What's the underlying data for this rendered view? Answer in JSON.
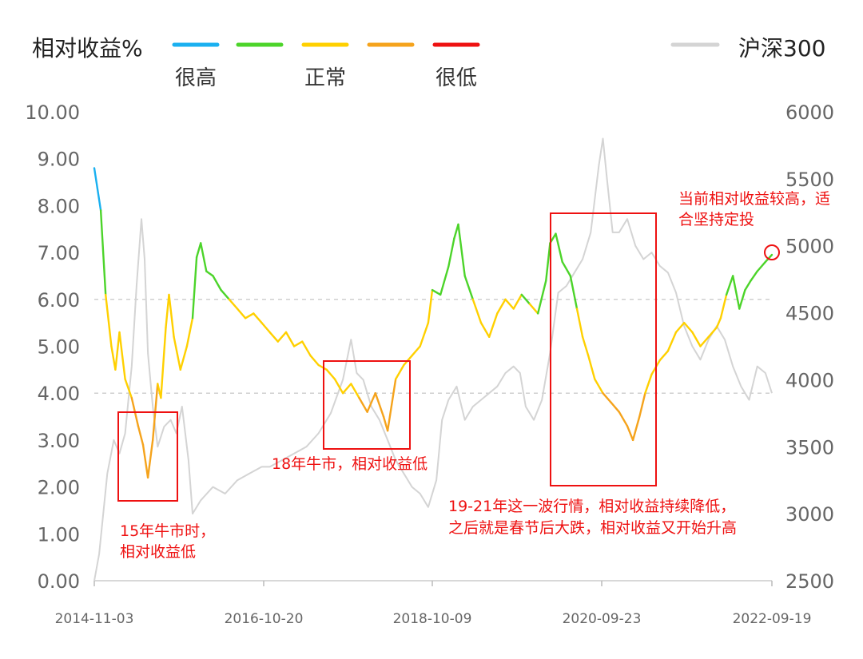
{
  "legend": {
    "title": "相对收益%",
    "items": [
      {
        "label": "很高",
        "color": "#1ab0f0"
      },
      {
        "label": "",
        "color": "#4cd42a"
      },
      {
        "label": "正常",
        "color": "#ffd000"
      },
      {
        "label": "",
        "color": "#f5a31c"
      },
      {
        "label": "很低",
        "color": "#ee1111"
      }
    ],
    "secondary": {
      "label": "沪深300",
      "color": "#d4d4d4"
    }
  },
  "chart_data": {
    "type": "line",
    "x_ticks": [
      "2014-11-03",
      "2016-10-20",
      "2018-10-09",
      "2020-09-23",
      "2022-09-19"
    ],
    "y_left": {
      "ylim": [
        0,
        10
      ],
      "ticks": [
        "0.00",
        "1.00",
        "2.00",
        "3.00",
        "4.00",
        "5.00",
        "6.00",
        "7.00",
        "8.00",
        "9.00",
        "10.00"
      ]
    },
    "y_right": {
      "ylim": [
        2500,
        6000
      ],
      "ticks": [
        "2500",
        "3000",
        "3500",
        "4000",
        "4500",
        "5000",
        "5500",
        "6000"
      ]
    },
    "reference_lines": [
      4.0,
      6.0
    ],
    "series": [
      {
        "name": "相对收益%",
        "axis": "left",
        "values": [
          [
            2014.84,
            8.8
          ],
          [
            2014.92,
            7.9
          ],
          [
            2014.98,
            6.1
          ],
          [
            2015.05,
            5.0
          ],
          [
            2015.1,
            4.5
          ],
          [
            2015.15,
            5.3
          ],
          [
            2015.22,
            4.3
          ],
          [
            2015.3,
            3.9
          ],
          [
            2015.38,
            3.3
          ],
          [
            2015.44,
            2.9
          ],
          [
            2015.5,
            2.2
          ],
          [
            2015.56,
            3.0
          ],
          [
            2015.62,
            4.2
          ],
          [
            2015.66,
            3.9
          ],
          [
            2015.72,
            5.4
          ],
          [
            2015.76,
            6.1
          ],
          [
            2015.82,
            5.2
          ],
          [
            2015.9,
            4.5
          ],
          [
            2015.98,
            5.0
          ],
          [
            2016.05,
            5.6
          ],
          [
            2016.1,
            6.9
          ],
          [
            2016.15,
            7.2
          ],
          [
            2016.22,
            6.6
          ],
          [
            2016.3,
            6.5
          ],
          [
            2016.4,
            6.2
          ],
          [
            2016.5,
            6.0
          ],
          [
            2016.6,
            5.8
          ],
          [
            2016.7,
            5.6
          ],
          [
            2016.8,
            5.7
          ],
          [
            2016.9,
            5.5
          ],
          [
            2017.0,
            5.3
          ],
          [
            2017.1,
            5.1
          ],
          [
            2017.2,
            5.3
          ],
          [
            2017.3,
            5.0
          ],
          [
            2017.4,
            5.1
          ],
          [
            2017.5,
            4.8
          ],
          [
            2017.6,
            4.6
          ],
          [
            2017.7,
            4.5
          ],
          [
            2017.8,
            4.3
          ],
          [
            2017.9,
            4.0
          ],
          [
            2018.0,
            4.2
          ],
          [
            2018.1,
            3.9
          ],
          [
            2018.2,
            3.6
          ],
          [
            2018.3,
            4.0
          ],
          [
            2018.4,
            3.5
          ],
          [
            2018.45,
            3.2
          ],
          [
            2018.55,
            4.3
          ],
          [
            2018.65,
            4.6
          ],
          [
            2018.75,
            4.8
          ],
          [
            2018.85,
            5.0
          ],
          [
            2018.95,
            5.5
          ],
          [
            2019.0,
            6.2
          ],
          [
            2019.1,
            6.1
          ],
          [
            2019.2,
            6.7
          ],
          [
            2019.27,
            7.3
          ],
          [
            2019.32,
            7.6
          ],
          [
            2019.4,
            6.5
          ],
          [
            2019.5,
            6.0
          ],
          [
            2019.6,
            5.5
          ],
          [
            2019.7,
            5.2
          ],
          [
            2019.8,
            5.7
          ],
          [
            2019.9,
            6.0
          ],
          [
            2020.0,
            5.8
          ],
          [
            2020.1,
            6.1
          ],
          [
            2020.2,
            5.9
          ],
          [
            2020.3,
            5.7
          ],
          [
            2020.4,
            6.4
          ],
          [
            2020.45,
            7.2
          ],
          [
            2020.52,
            7.4
          ],
          [
            2020.6,
            6.8
          ],
          [
            2020.7,
            6.5
          ],
          [
            2020.78,
            5.8
          ],
          [
            2020.85,
            5.2
          ],
          [
            2020.92,
            4.8
          ],
          [
            2021.0,
            4.3
          ],
          [
            2021.1,
            4.0
          ],
          [
            2021.2,
            3.8
          ],
          [
            2021.3,
            3.6
          ],
          [
            2021.4,
            3.3
          ],
          [
            2021.47,
            3.0
          ],
          [
            2021.55,
            3.5
          ],
          [
            2021.62,
            4.0
          ],
          [
            2021.7,
            4.4
          ],
          [
            2021.8,
            4.7
          ],
          [
            2021.9,
            4.9
          ],
          [
            2022.0,
            5.3
          ],
          [
            2022.1,
            5.5
          ],
          [
            2022.2,
            5.3
          ],
          [
            2022.3,
            5.0
          ],
          [
            2022.4,
            5.2
          ],
          [
            2022.5,
            5.4
          ],
          [
            2022.55,
            5.6
          ],
          [
            2022.62,
            6.1
          ],
          [
            2022.7,
            6.5
          ],
          [
            2022.78,
            5.8
          ],
          [
            2022.85,
            6.2
          ],
          [
            2022.92,
            6.4
          ],
          [
            2023.0,
            6.6
          ],
          [
            2023.1,
            6.8
          ],
          [
            2023.18,
            6.95
          ]
        ]
      },
      {
        "name": "沪深300",
        "axis": "right",
        "values": [
          [
            2014.84,
            2500
          ],
          [
            2014.9,
            2700
          ],
          [
            2014.95,
            3000
          ],
          [
            2015.0,
            3300
          ],
          [
            2015.08,
            3550
          ],
          [
            2015.15,
            3450
          ],
          [
            2015.22,
            3600
          ],
          [
            2015.3,
            4100
          ],
          [
            2015.36,
            4700
          ],
          [
            2015.42,
            5200
          ],
          [
            2015.46,
            4900
          ],
          [
            2015.5,
            4200
          ],
          [
            2015.56,
            3800
          ],
          [
            2015.62,
            3500
          ],
          [
            2015.7,
            3650
          ],
          [
            2015.78,
            3700
          ],
          [
            2015.85,
            3600
          ],
          [
            2015.92,
            3800
          ],
          [
            2016.0,
            3400
          ],
          [
            2016.05,
            3000
          ],
          [
            2016.15,
            3100
          ],
          [
            2016.3,
            3200
          ],
          [
            2016.45,
            3150
          ],
          [
            2016.6,
            3250
          ],
          [
            2016.75,
            3300
          ],
          [
            2016.9,
            3350
          ],
          [
            2017.0,
            3350
          ],
          [
            2017.15,
            3400
          ],
          [
            2017.3,
            3450
          ],
          [
            2017.45,
            3500
          ],
          [
            2017.6,
            3600
          ],
          [
            2017.75,
            3750
          ],
          [
            2017.9,
            4000
          ],
          [
            2018.0,
            4300
          ],
          [
            2018.07,
            4050
          ],
          [
            2018.15,
            4000
          ],
          [
            2018.25,
            3800
          ],
          [
            2018.35,
            3700
          ],
          [
            2018.45,
            3550
          ],
          [
            2018.55,
            3400
          ],
          [
            2018.65,
            3300
          ],
          [
            2018.75,
            3200
          ],
          [
            2018.85,
            3150
          ],
          [
            2018.95,
            3050
          ],
          [
            2019.05,
            3250
          ],
          [
            2019.12,
            3700
          ],
          [
            2019.2,
            3850
          ],
          [
            2019.3,
            3950
          ],
          [
            2019.4,
            3700
          ],
          [
            2019.5,
            3800
          ],
          [
            2019.6,
            3850
          ],
          [
            2019.7,
            3900
          ],
          [
            2019.8,
            3950
          ],
          [
            2019.9,
            4050
          ],
          [
            2020.0,
            4100
          ],
          [
            2020.08,
            4050
          ],
          [
            2020.15,
            3800
          ],
          [
            2020.25,
            3700
          ],
          [
            2020.35,
            3850
          ],
          [
            2020.45,
            4200
          ],
          [
            2020.55,
            4650
          ],
          [
            2020.65,
            4700
          ],
          [
            2020.75,
            4800
          ],
          [
            2020.85,
            4900
          ],
          [
            2020.95,
            5100
          ],
          [
            2021.05,
            5600
          ],
          [
            2021.1,
            5800
          ],
          [
            2021.15,
            5500
          ],
          [
            2021.22,
            5100
          ],
          [
            2021.3,
            5100
          ],
          [
            2021.4,
            5200
          ],
          [
            2021.5,
            5000
          ],
          [
            2021.6,
            4900
          ],
          [
            2021.7,
            4950
          ],
          [
            2021.8,
            4850
          ],
          [
            2021.9,
            4800
          ],
          [
            2022.0,
            4650
          ],
          [
            2022.1,
            4400
          ],
          [
            2022.2,
            4250
          ],
          [
            2022.3,
            4150
          ],
          [
            2022.4,
            4300
          ],
          [
            2022.5,
            4400
          ],
          [
            2022.6,
            4300
          ],
          [
            2022.7,
            4100
          ],
          [
            2022.8,
            3950
          ],
          [
            2022.9,
            3850
          ],
          [
            2023.0,
            4100
          ],
          [
            2023.1,
            4050
          ],
          [
            2023.18,
            3900
          ]
        ]
      }
    ],
    "annotations": [
      {
        "text": "当前相对收益较高，适合坚持定投",
        "lines": [
          "当前相对收益较高，适",
          "合坚持定投"
        ]
      },
      {
        "text": "15年牛市时，相对收益低",
        "lines": [
          "15年牛市时，",
          "相对收益低"
        ]
      },
      {
        "text": "18年牛市，相对收益低",
        "lines": [
          "18年牛市，相对收益低"
        ]
      },
      {
        "text": "19-21年这一波行情，相对收益持续降低，之后就是春节后大跌，相对收益又开始升高",
        "lines": [
          "19-21年这一波行情，相对收益持续降低，",
          "之后就是春节后大跌，相对收益又开始升高"
        ]
      }
    ]
  }
}
